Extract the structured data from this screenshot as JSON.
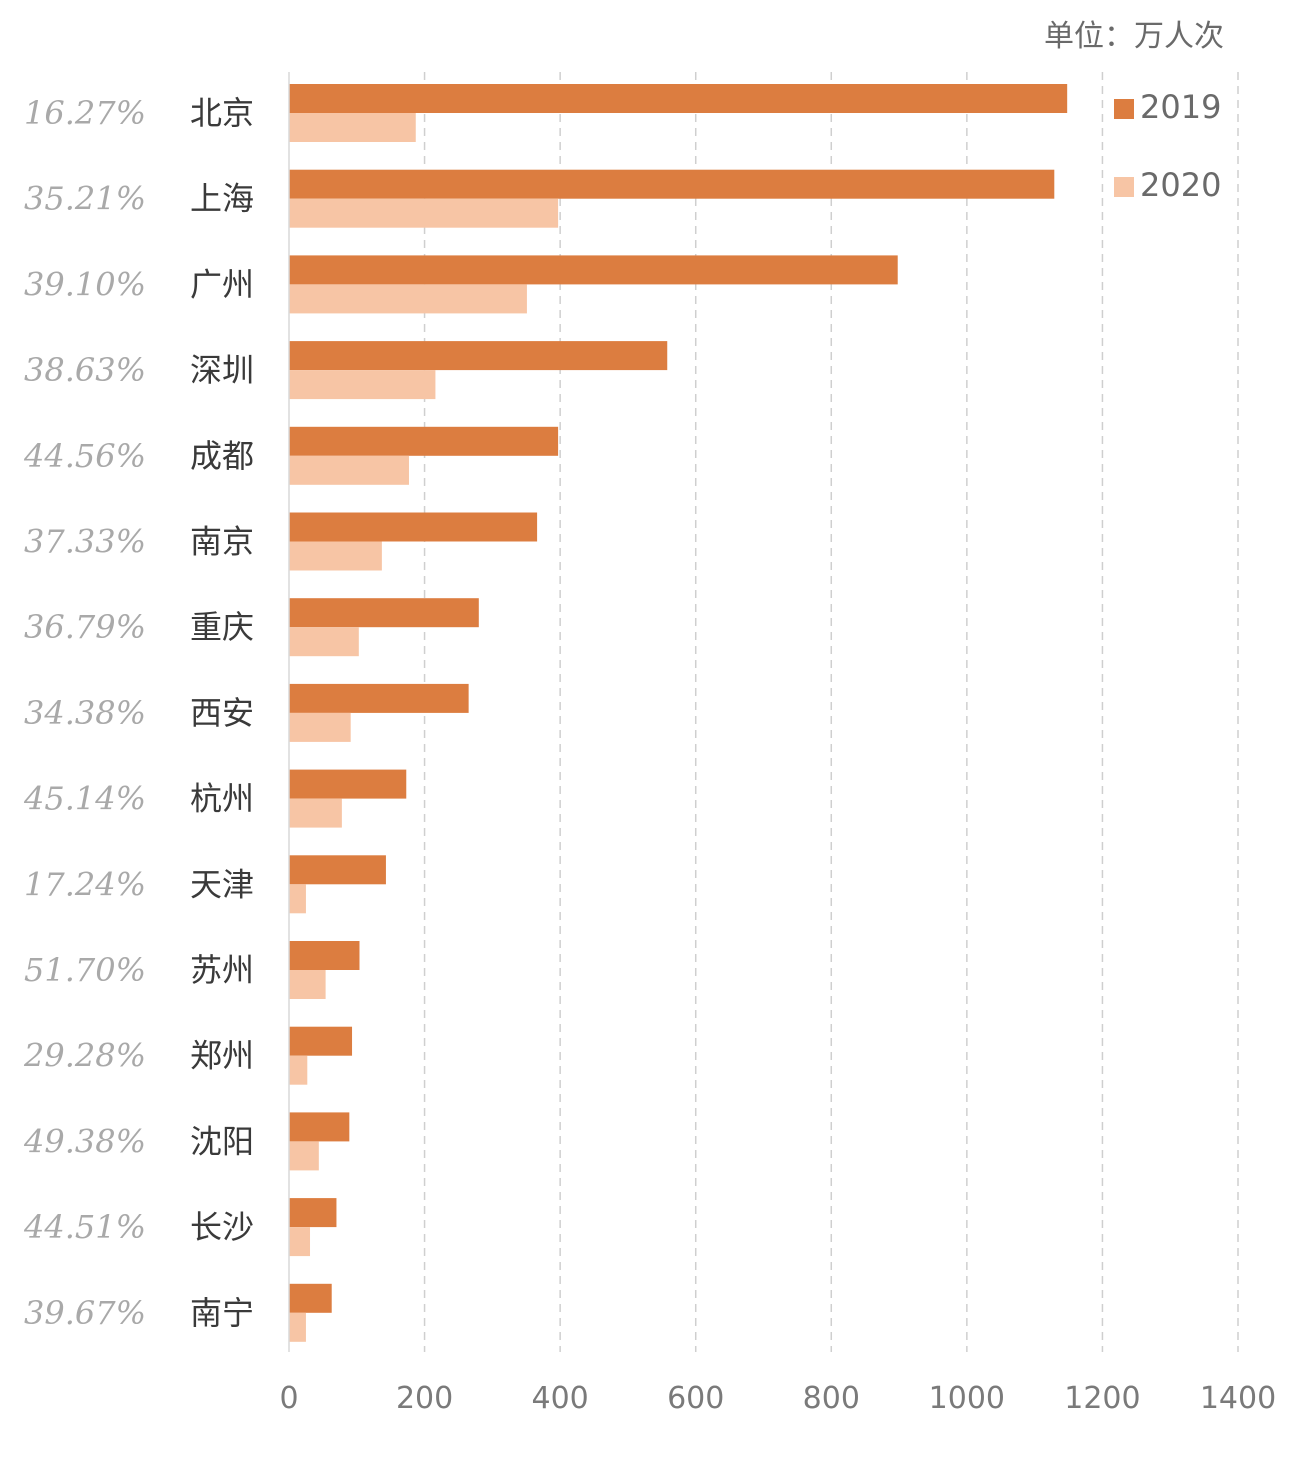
{
  "chart_data": {
    "type": "bar",
    "orientation": "horizontal",
    "unit": "单位：万人次",
    "categories": [
      "北京",
      "上海",
      "广州",
      "深圳",
      "成都",
      "南京",
      "重庆",
      "西安",
      "杭州",
      "天津",
      "苏州",
      "郑州",
      "沈阳",
      "长沙",
      "南宁"
    ],
    "ratios": [
      "16.27%",
      "35.21%",
      "39.10%",
      "38.63%",
      "44.56%",
      "37.33%",
      "36.79%",
      "34.38%",
      "45.14%",
      "17.24%",
      "51.70%",
      "29.28%",
      "49.38%",
      "44.51%",
      "39.67%"
    ],
    "series": [
      {
        "name": "2019",
        "color": "#dc7d40",
        "values": [
          1148,
          1129,
          898,
          558,
          397,
          366,
          280,
          265,
          173,
          143,
          104,
          93,
          89,
          70,
          63
        ]
      },
      {
        "name": "2020",
        "color": "#f7c5a5",
        "values": [
          187,
          397,
          351,
          216,
          177,
          137,
          103,
          91,
          78,
          25,
          54,
          27,
          44,
          31,
          25
        ]
      }
    ],
    "xlim": [
      0,
      1400
    ],
    "xticks": [
      "0",
      "200",
      "400",
      "600",
      "800",
      "1000",
      "1200",
      "1400"
    ],
    "grid": true,
    "legend_position": "top-right"
  }
}
